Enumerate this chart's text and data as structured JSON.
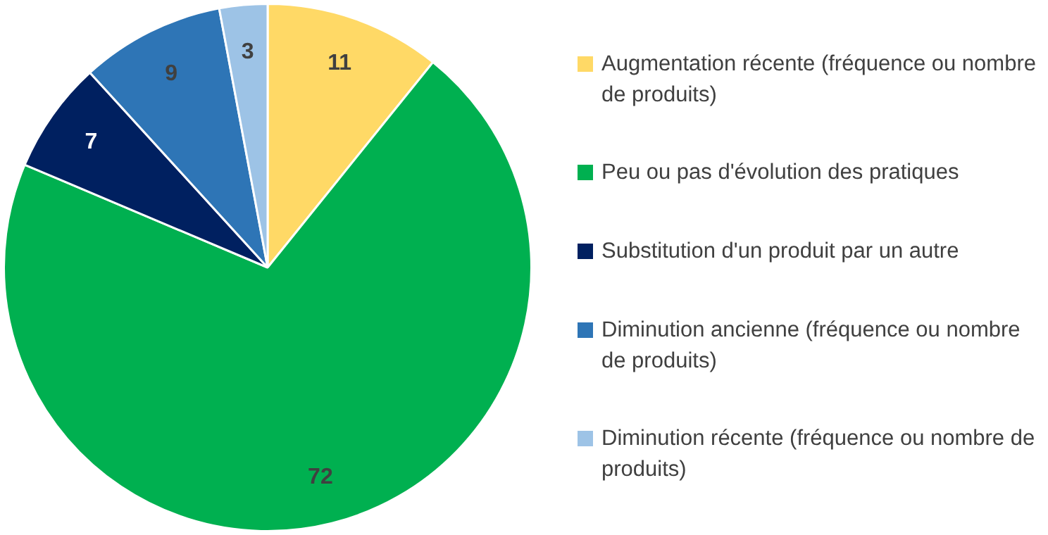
{
  "chart_data": {
    "type": "pie",
    "categories": [
      "Augmentation récente (fréquence ou nombre de produits)",
      "Peu ou pas d'évolution des pratiques",
      "Substitution d'un produit par un autre",
      "Diminution ancienne (fréquence ou nombre de produits)",
      "Diminution récente (fréquence ou nombre de produits)"
    ],
    "values": [
      11,
      72,
      7,
      9,
      3
    ],
    "colors": [
      "#ffd966",
      "#00b050",
      "#002060",
      "#2e75b6",
      "#9dc3e6"
    ],
    "data_labels": true,
    "legend": "right"
  }
}
